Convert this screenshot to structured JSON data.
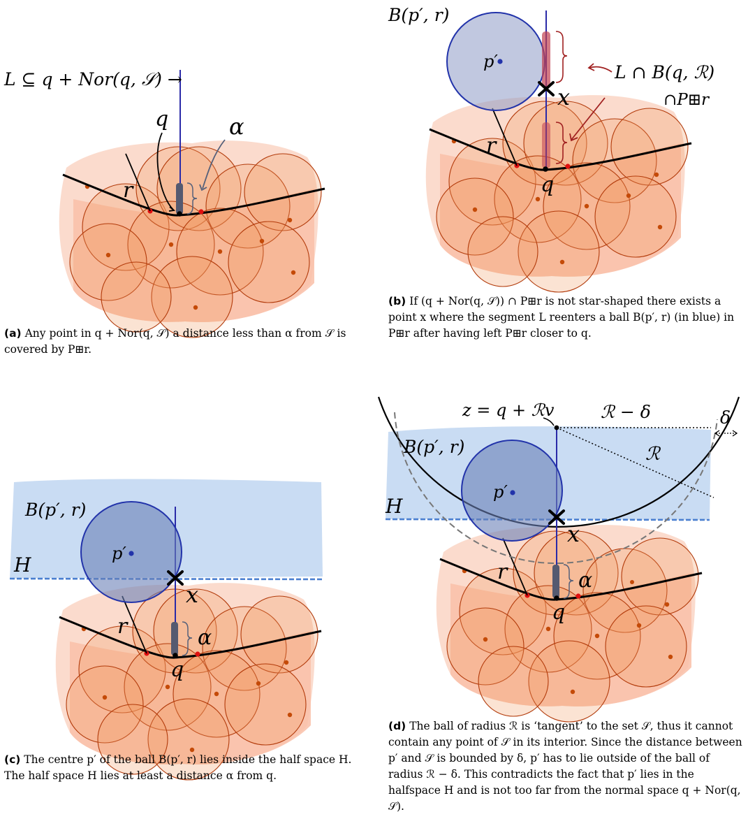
{
  "panel_a": {
    "normal_label": "L ⊆ q + Nor(q, 𝒮) →",
    "q": "q",
    "alpha": "α",
    "r": "r",
    "caption_tag": "(a)",
    "caption_text": "Any point in q + Nor(q, 𝒮) a distance less than α from 𝒮 is covered by P⊞r."
  },
  "panel_b": {
    "ball_label": "B(p′, r)",
    "p_prime": "p′",
    "x": "x",
    "q": "q",
    "r": "r",
    "intersect_line1": "L ∩ B(q, ℛ)",
    "intersect_line2": "∩P⊞r",
    "caption_tag": "(b)",
    "caption_text": "If (q + Nor(q, 𝒮)) ∩ P⊞r is not star-shaped there exists a point x where the segment L reenters a ball B(p′, r) (in blue) in P⊞r after having left P⊞r closer to q."
  },
  "panel_c": {
    "ball_label": "B(p′, r)",
    "p_prime": "p′",
    "H": "H",
    "x": "x",
    "q": "q",
    "r": "r",
    "alpha": "α",
    "caption_tag": "(c)",
    "caption_text": "The centre p′ of the ball B(p′, r) lies inside the half space H. The half space H lies at least a distance α from q."
  },
  "panel_d": {
    "z_label": "z = q + ℛv",
    "R_minus_delta": "ℛ − δ",
    "delta": "δ",
    "R": "ℛ",
    "ball_label": "B(p′, r)",
    "p_prime": "p′",
    "H": "H",
    "x": "x",
    "q": "q",
    "r": "r",
    "alpha": "α",
    "caption_tag": "(d)",
    "caption_text": "The ball of radius ℛ is ‘tangent’ to the set 𝒮, thus it cannot contain any point of 𝒮 in its interior. Since the distance between p′ and 𝒮 is bounded by δ, p′ has to lie outside of the ball of radius ℛ − δ. This contradicts the fact that p′ lies in the halfspace H and is not too far from the normal space q + Nor(q, 𝒮)."
  },
  "colors": {
    "blob_light": "#f9c9b5",
    "ball_fill": "#f19a62",
    "ball_stroke": "#b23a0a",
    "blue_ball": "#2233aa",
    "halfspace": "#c9dcf3",
    "halfspace_edge": "#4a7fd0",
    "normal_line": "#2a2aa8",
    "red_point": "#e01010",
    "brace": "#a02020"
  }
}
